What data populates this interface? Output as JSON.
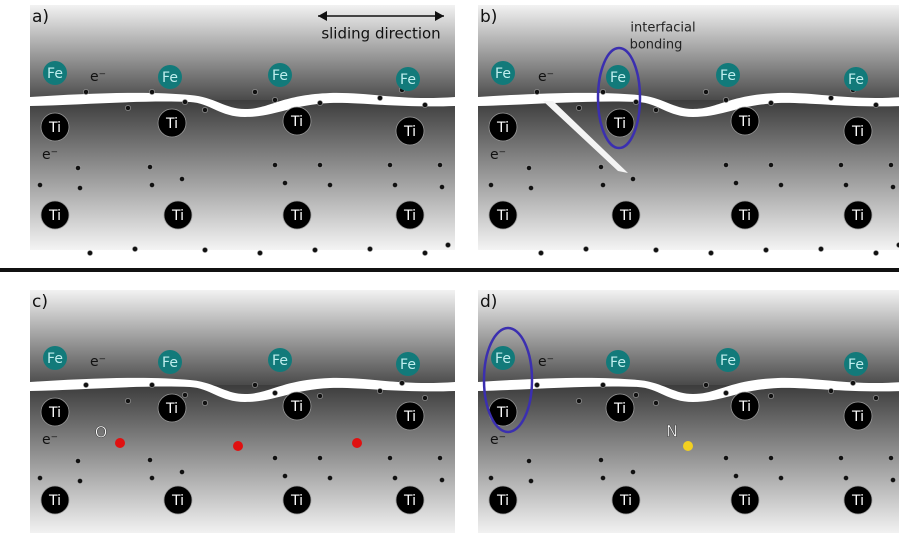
{
  "panels": [
    {
      "label": "a)",
      "fe": [
        "Fe",
        "Fe",
        "Fe",
        "Fe"
      ],
      "ti": [
        "Ti",
        "Ti",
        "Ti",
        "Ti",
        "Ti",
        "Ti",
        "Ti",
        "Ti"
      ],
      "electrons": [
        "e⁻",
        "e⁻"
      ]
    },
    {
      "label": "b)",
      "fe": [
        "Fe",
        "Fe",
        "Fe",
        "Fe"
      ],
      "ti": [
        "Ti",
        "Ti",
        "Ti",
        "Ti",
        "Ti",
        "Ti",
        "Ti",
        "Ti"
      ],
      "electrons": [
        "e⁻",
        "e⁻"
      ]
    },
    {
      "label": "c)",
      "fe": [
        "Fe",
        "Fe",
        "Fe",
        "Fe"
      ],
      "ti": [
        "Ti",
        "Ti",
        "Ti",
        "Ti",
        "Ti",
        "Ti",
        "Ti",
        "Ti"
      ],
      "electrons": [
        "e⁻",
        "e⁻"
      ]
    },
    {
      "label": "d)",
      "fe": [
        "Fe",
        "Fe",
        "Fe",
        "Fe"
      ],
      "ti": [
        "Ti",
        "Ti",
        "Ti",
        "Ti",
        "Ti",
        "Ti",
        "Ti",
        "Ti"
      ],
      "electrons": [
        "e⁻",
        "e⁻"
      ]
    }
  ],
  "annotations": {
    "sliding_direction": "sliding direction",
    "interfacial_bonding": [
      "interfacial",
      "bonding"
    ],
    "oxygen": "O",
    "nitrogen": "N"
  }
}
